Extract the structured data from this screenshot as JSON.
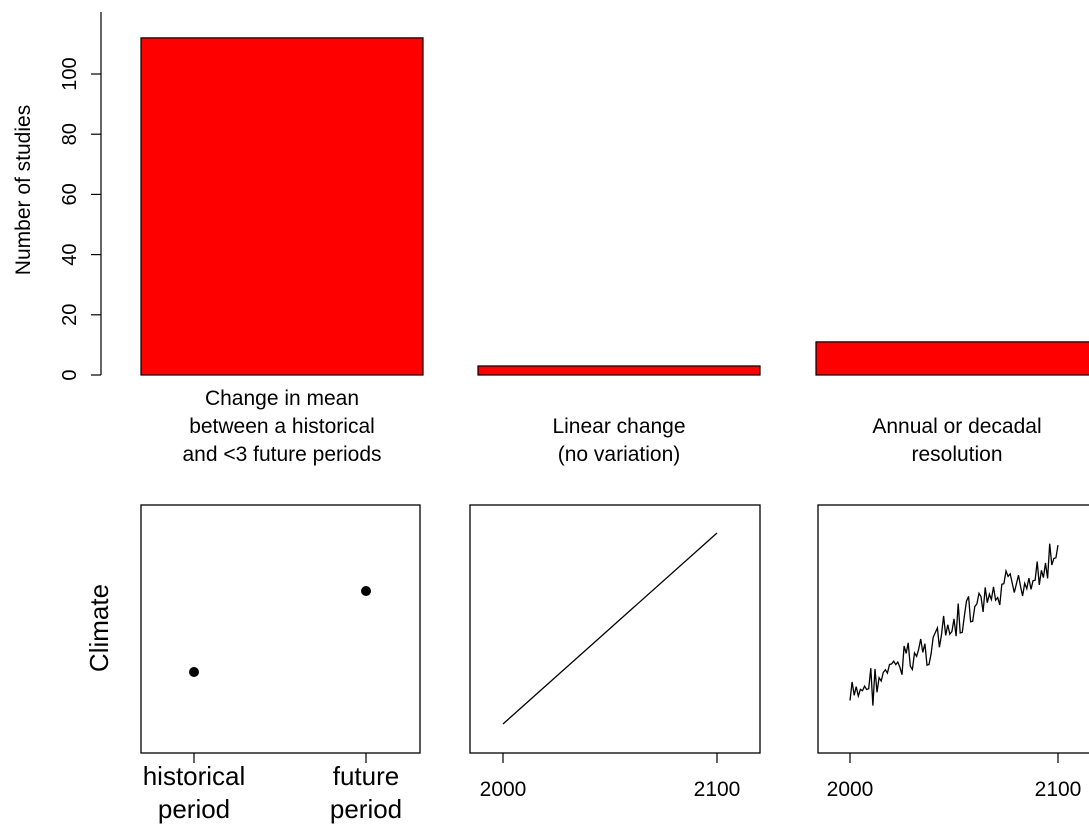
{
  "chart_data": [
    {
      "type": "bar",
      "ylabel": "Number of studies",
      "ylim": [
        0,
        110
      ],
      "yticks": [
        0,
        20,
        40,
        60,
        80,
        100
      ],
      "grid": false,
      "bar_color": "#ff0000",
      "categories": [
        [
          "Change in mean",
          "between a historical",
          "and <3 future periods"
        ],
        [
          "Linear change",
          "(no variation)"
        ],
        [
          "Annual or decadal",
          "resolution"
        ]
      ],
      "values": [
        112,
        3,
        11
      ]
    },
    {
      "type": "scatter",
      "ylabel": "Climate",
      "xticks": [
        [
          "historical",
          "period"
        ],
        [
          "future",
          "period"
        ]
      ],
      "points": [
        {
          "x": 0,
          "y": 0.3
        },
        {
          "x": 1,
          "y": 0.6
        }
      ]
    },
    {
      "type": "line",
      "xticks": [
        "2000",
        "2100"
      ],
      "x": [
        2000,
        2100
      ],
      "y": [
        0.1,
        0.9
      ]
    },
    {
      "type": "line",
      "xticks": [
        "2000",
        "2100"
      ],
      "x_range": [
        2000,
        2100
      ],
      "trend_start": 0.25,
      "trend_end": 0.85
    }
  ]
}
